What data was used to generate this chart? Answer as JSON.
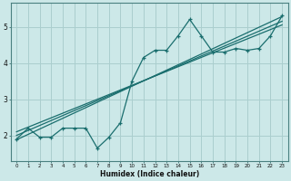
{
  "xlabel": "Humidex (Indice chaleur)",
  "bg_color": "#cce8e8",
  "line_color": "#1a6e6e",
  "grid_color": "#aacece",
  "scatter_x": [
    0,
    1,
    2,
    3,
    4,
    5,
    6,
    7,
    8,
    9,
    10,
    11,
    12,
    13,
    14,
    15,
    16,
    17,
    18,
    19,
    20,
    21,
    22,
    23
  ],
  "scatter_y": [
    1.9,
    2.2,
    1.95,
    1.95,
    2.2,
    2.2,
    2.2,
    1.65,
    1.95,
    2.35,
    3.5,
    4.15,
    4.35,
    4.35,
    4.75,
    5.2,
    4.75,
    4.3,
    4.3,
    4.4,
    4.35,
    4.4,
    4.75,
    5.3
  ],
  "reg_lines": [
    [
      [
        0,
        23
      ],
      [
        1.88,
        5.28
      ]
    ],
    [
      [
        0,
        23
      ],
      [
        2.0,
        5.15
      ]
    ],
    [
      [
        0,
        23
      ],
      [
        2.1,
        5.05
      ]
    ]
  ],
  "ylim": [
    1.3,
    5.65
  ],
  "xlim": [
    -0.5,
    23.5
  ],
  "xticks": [
    0,
    1,
    2,
    3,
    4,
    5,
    6,
    7,
    8,
    9,
    10,
    11,
    12,
    13,
    14,
    15,
    16,
    17,
    18,
    19,
    20,
    21,
    22,
    23
  ],
  "yticks": [
    2,
    3,
    4,
    5
  ]
}
